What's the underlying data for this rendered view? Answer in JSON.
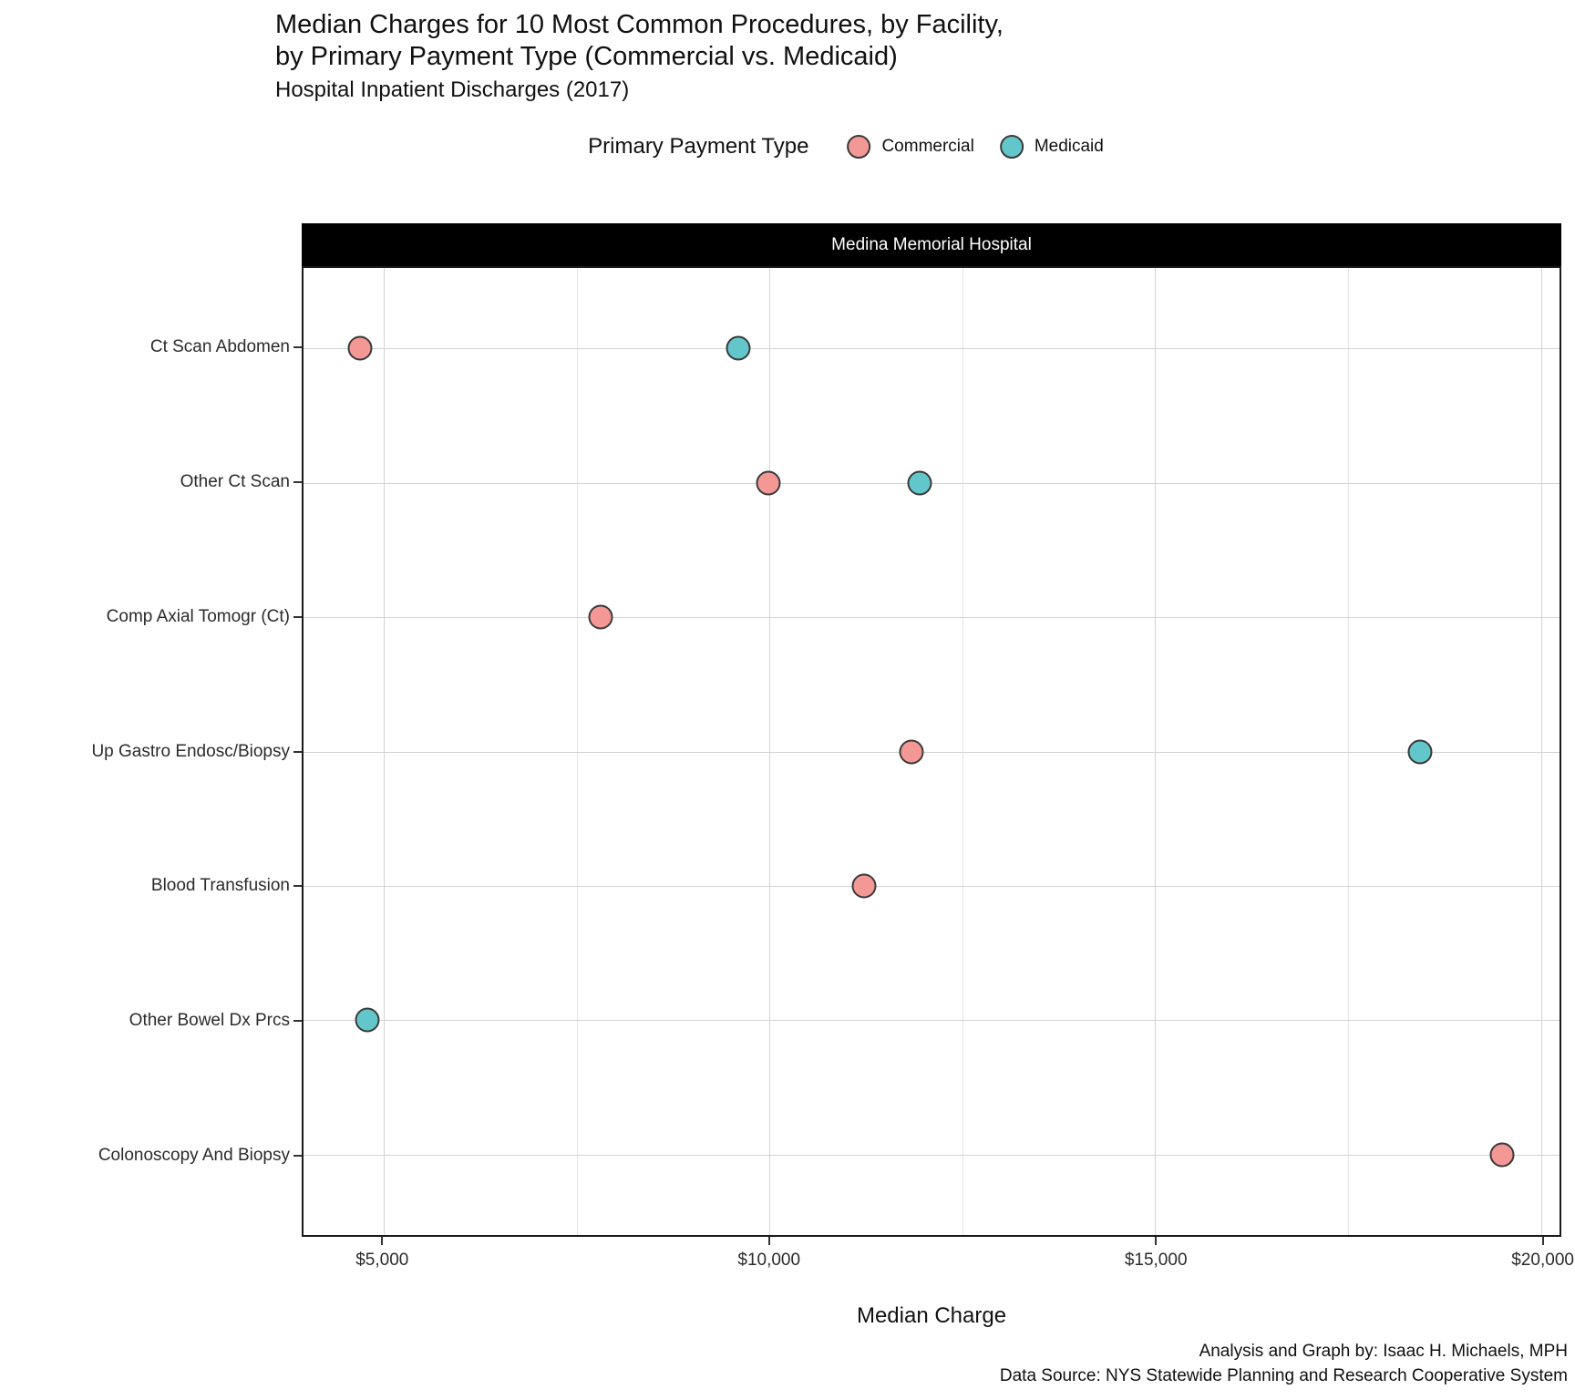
{
  "header": {
    "title": "Median Charges for 10 Most Common Procedures, by Facility,\nby Primary Payment Type (Commercial vs. Medicaid)",
    "subtitle": "Hospital Inpatient Discharges (2017)"
  },
  "caption": "Analysis and Graph by: Isaac H. Michaels, MPH\nData Source: NYS Statewide Planning and Research Cooperative System",
  "colors": {
    "commercial_fill": "#F49896",
    "medicaid_fill": "#63C6CA",
    "point_stroke": "#3A3A3A",
    "strip_background": "#000000",
    "strip_text": "#FFFFFF",
    "gridline_major": "#D4D4D4",
    "gridline_minor": "#E4E4E4"
  },
  "chart_data": {
    "type": "scatter",
    "title": "Median Charges for 10 Most Common Procedures, by Facility, by Primary Payment Type (Commercial vs. Medicaid)",
    "subtitle": "Hospital Inpatient Discharges (2017)",
    "facet_label": "Medina Memorial Hospital",
    "legend_title": "Primary Payment Type",
    "legend_position": "top-center",
    "xlabel": "Median Charge",
    "ylabel": "",
    "grid": true,
    "xlim": [
      3960,
      20240
    ],
    "x_ticks": [
      5000,
      10000,
      15000,
      20000
    ],
    "x_tick_labels": [
      "$5,000",
      "$10,000",
      "$15,000",
      "$20,000"
    ],
    "x_minor_ticks": [
      7500,
      12500,
      17500
    ],
    "categories": [
      "Ct Scan Abdomen",
      "Other Ct Scan",
      "Comp Axial Tomogr (Ct)",
      "Up Gastro Endosc/Biopsy",
      "Blood Transfusion",
      "Other Bowel Dx Prcs",
      "Colonoscopy And Biopsy"
    ],
    "series": [
      {
        "name": "Commercial",
        "color": "#F49896",
        "points": [
          {
            "category": "Ct Scan Abdomen",
            "value": 4690
          },
          {
            "category": "Other Ct Scan",
            "value": 9990
          },
          {
            "category": "Comp Axial Tomogr (Ct)",
            "value": 7810
          },
          {
            "category": "Up Gastro Endosc/Biopsy",
            "value": 11840
          },
          {
            "category": "Blood Transfusion",
            "value": 11230
          },
          {
            "category": "Colonoscopy And Biopsy",
            "value": 19500
          }
        ]
      },
      {
        "name": "Medicaid",
        "color": "#63C6CA",
        "points": [
          {
            "category": "Ct Scan Abdomen",
            "value": 9590
          },
          {
            "category": "Other Ct Scan",
            "value": 11950
          },
          {
            "category": "Up Gastro Endosc/Biopsy",
            "value": 18430
          },
          {
            "category": "Other Bowel Dx Prcs",
            "value": 4790
          }
        ]
      }
    ]
  }
}
